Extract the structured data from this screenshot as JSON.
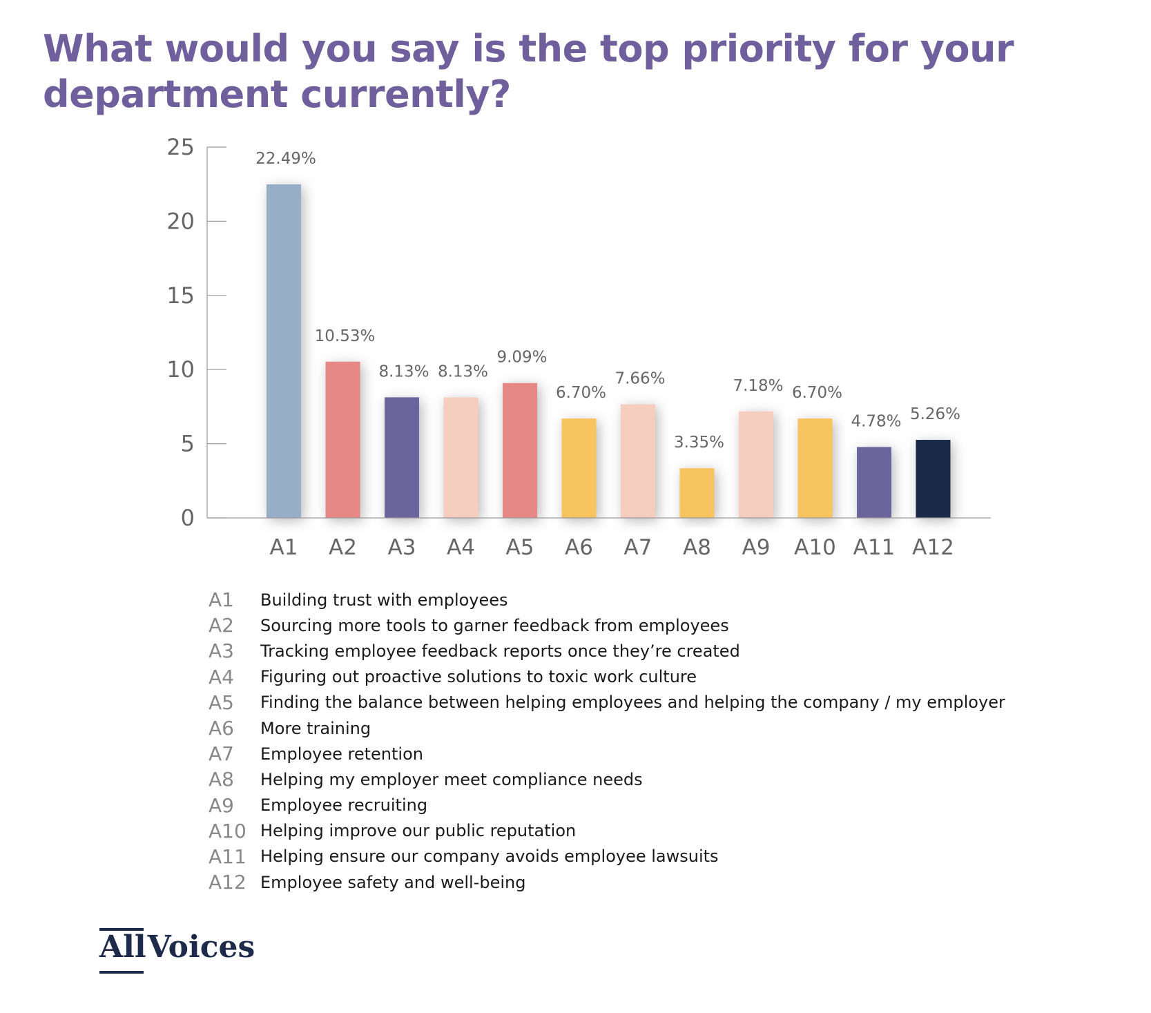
{
  "title": "What would you say is the top priority for your department currently?",
  "colors": {
    "title": "#6f5f9c",
    "axis": "#999999",
    "tick_text": "#666666",
    "data_label": "#666666",
    "logo": "#1d2a4a"
  },
  "chart_data": {
    "type": "bar",
    "categories": [
      "A1",
      "A2",
      "A3",
      "A4",
      "A5",
      "A6",
      "A7",
      "A8",
      "A9",
      "A10",
      "A11",
      "A12"
    ],
    "values": [
      22.49,
      10.53,
      8.13,
      8.13,
      9.09,
      6.7,
      7.66,
      3.35,
      7.18,
      6.7,
      4.78,
      5.26
    ],
    "labels": [
      "22.49%",
      "10.53%",
      "8.13%",
      "8.13%",
      "9.09%",
      "6.70%",
      "7.66%",
      "3.35%",
      "7.18%",
      "6.70%",
      "4.78%",
      "5.26%"
    ],
    "bar_colors": [
      "#96afc6",
      "#e58785",
      "#6b659c",
      "#f5cec0",
      "#e58785",
      "#f8c45f",
      "#f5cec0",
      "#f8c45f",
      "#f5cec0",
      "#f8c45f",
      "#6b659c",
      "#1d2a4a"
    ],
    "yticks": [
      0,
      5,
      10,
      15,
      20,
      25
    ],
    "ylim": [
      0,
      25
    ],
    "xlabel": "",
    "ylabel": "",
    "grid": false
  },
  "legend": [
    {
      "code": "A1",
      "text": "Building trust with employees"
    },
    {
      "code": "A2",
      "text": "Sourcing more tools to garner feedback from employees"
    },
    {
      "code": "A3",
      "text": "Tracking employee feedback reports once they’re created"
    },
    {
      "code": "A4",
      "text": "Figuring out proactive solutions to toxic work culture"
    },
    {
      "code": "A5",
      "text": "Finding the balance between helping employees and helping the company / my employer"
    },
    {
      "code": "A6",
      "text": "More training"
    },
    {
      "code": "A7",
      "text": "Employee retention"
    },
    {
      "code": "A8",
      "text": "Helping my employer meet compliance needs"
    },
    {
      "code": "A9",
      "text": "Employee recruiting"
    },
    {
      "code": "A10",
      "text": "Helping improve our public reputation"
    },
    {
      "code": "A11",
      "text": "Helping ensure our company avoids employee lawsuits"
    },
    {
      "code": "A12",
      "text": "Employee safety and well-being"
    }
  ],
  "logo": {
    "part1": "All",
    "part2": "Voices"
  }
}
